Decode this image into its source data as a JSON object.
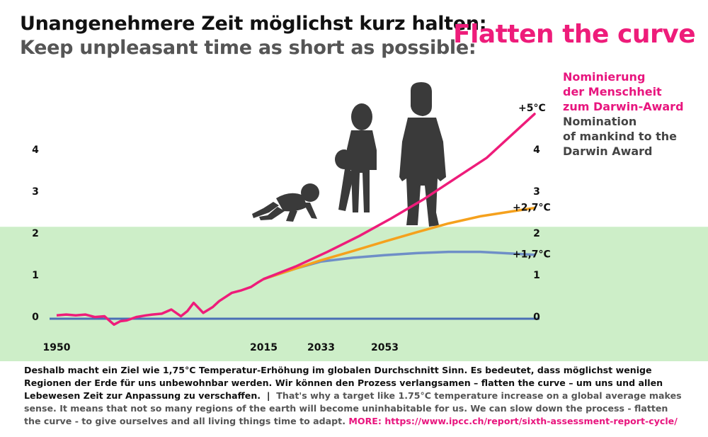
{
  "header": {
    "title_de": "Unangenehmere Zeit möglichst kurz halten:",
    "title_en": "Keep unpleasant time as short as possible:",
    "headline": "Flatten the curve"
  },
  "award_note": {
    "de_lines": [
      "Nominierung",
      "der Menschheit",
      "zum Darwin-Award"
    ],
    "en_lines": [
      "Nomination",
      "of mankind to the",
      "Darwin Award"
    ]
  },
  "footer": {
    "text_de": "Deshalb macht ein Ziel wie 1,75°C Temperatur-Erhöhung im globalen Durchschnitt Sinn. Es bedeutet, dass möglichst wenige Regionen der Erde für uns unbewohnbar werden. Wir können den Prozess verlangsamen – flatten the curve – um uns und allen Lebewesen Zeit zur Anpassung zu verschaffen.",
    "separator": "|",
    "text_en": "That's why a target like 1.75°C temperature increase on a global average makes sense. It means that not so many regions of the earth will become uninhabitable for us. We can slow down the process - flatten the curve - to give ourselves and all living things time to adapt.",
    "more_label": "MORE:",
    "more_url": "https://www.ipcc.ch/report/sixth-assessment-report-cycle/"
  },
  "colors": {
    "pink": "#ee1c7a",
    "orange": "#f5a11d",
    "blue": "#6f8fc7",
    "zero_line": "#4a6fb5",
    "green_zone": "#cdeec8",
    "figures": "#3a3a3a"
  },
  "chart_data": {
    "type": "line",
    "title": "",
    "xlabel": "",
    "ylabel": "",
    "x_ticks": [
      "1950",
      "2015",
      "2033",
      "2053"
    ],
    "y_ticks_left": [
      "0",
      "1",
      "2",
      "3",
      "4"
    ],
    "y_ticks_right": [
      "0",
      "1",
      "2",
      "3",
      "4"
    ],
    "ylim": [
      0,
      5
    ],
    "green_zone_top": 2.2,
    "history": {
      "x": [
        1950,
        1953,
        1956,
        1959,
        1962,
        1965,
        1968,
        1970,
        1972,
        1975,
        1978,
        1980,
        1983,
        1986,
        1989,
        1991,
        1993,
        1996,
        1999,
        2001,
        2003,
        2005,
        2008,
        2011,
        2013,
        2015
      ],
      "y": [
        0.08,
        0.1,
        0.08,
        0.1,
        0.04,
        0.06,
        -0.14,
        -0.06,
        -0.04,
        0.04,
        0.08,
        0.1,
        0.12,
        0.22,
        0.06,
        0.18,
        0.38,
        0.14,
        0.28,
        0.42,
        0.52,
        0.62,
        0.68,
        0.76,
        0.86,
        0.95
      ]
    },
    "series": [
      {
        "label": "+5°C",
        "color": "#ee1c7a",
        "x": [
          2015,
          2025,
          2035,
          2045,
          2055,
          2065,
          2075,
          2085,
          2100
        ],
        "y": [
          0.95,
          1.25,
          1.6,
          1.98,
          2.4,
          2.85,
          3.35,
          3.85,
          4.9
        ]
      },
      {
        "label": "+2,7°C",
        "color": "#f5a11d",
        "x": [
          2015,
          2025,
          2033,
          2043,
          2053,
          2063,
          2073,
          2083,
          2093,
          2100
        ],
        "y": [
          0.95,
          1.2,
          1.4,
          1.62,
          1.85,
          2.07,
          2.28,
          2.45,
          2.57,
          2.65
        ]
      },
      {
        "label": "+1,7°C",
        "color": "#6f8fc7",
        "x": [
          2015,
          2025,
          2033,
          2043,
          2053,
          2063,
          2073,
          2083,
          2093,
          2100
        ],
        "y": [
          0.95,
          1.2,
          1.37,
          1.46,
          1.52,
          1.57,
          1.6,
          1.6,
          1.56,
          1.53
        ]
      }
    ]
  }
}
